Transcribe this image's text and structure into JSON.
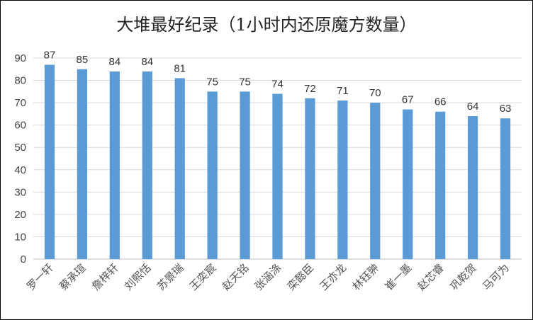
{
  "chart_data": {
    "type": "bar",
    "title": "大堆最好纪录（1小时内还原魔方数量）",
    "categories": [
      "罗一轩",
      "蔡承瑄",
      "詹梓轩",
      "刘熙恬",
      "苏景瑞",
      "王奕宸",
      "赵天铭",
      "张涵涤",
      "栾懿臣",
      "王亦龙",
      "林钰翀",
      "崔一墨",
      "赵芯睿",
      "巩乾贺",
      "马可为"
    ],
    "values": [
      87,
      85,
      84,
      84,
      81,
      75,
      75,
      74,
      72,
      71,
      70,
      67,
      66,
      64,
      63
    ],
    "ylim": [
      0,
      90
    ],
    "yticks": [
      0,
      10,
      20,
      30,
      40,
      50,
      60,
      70,
      80,
      90
    ],
    "grid": true,
    "legend": "none",
    "bar_color": "#5B9BD5",
    "grid_color": "#D9D9D9"
  }
}
